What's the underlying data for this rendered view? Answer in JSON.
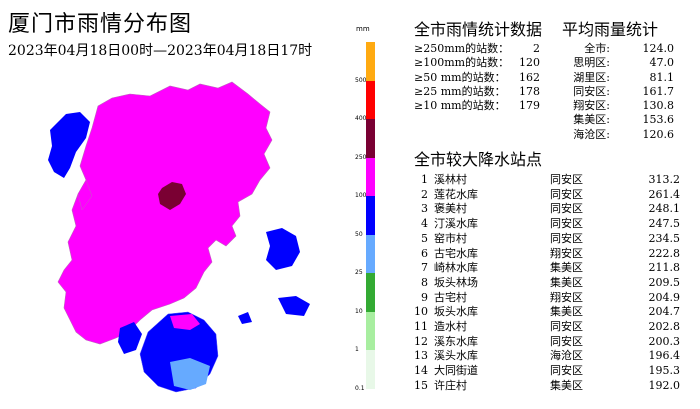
{
  "title": "厦门市雨情分布图",
  "subtitle": "2023年04月18日00时—2023年04月18日17时",
  "legend": {
    "unit": "mm",
    "ticks": [
      "500",
      "400",
      "250",
      "100",
      "50",
      "25",
      "10",
      "1",
      "0.1"
    ],
    "colors": [
      "#ffaa11",
      "#ff0000",
      "#7a0033",
      "#ff00ff",
      "#0000ff",
      "#66aaff",
      "#33aa33",
      "#a8eea0",
      "#e8f8e8"
    ]
  },
  "stats": {
    "title": "全市雨情统计数据",
    "rows": [
      {
        "label": "≥250mm的站数：",
        "value": "2"
      },
      {
        "label": "≥100mm的站数：",
        "value": "120"
      },
      {
        "label": "≥50 mm的站数：",
        "value": "162"
      },
      {
        "label": "≥25 mm的站数：",
        "value": "178"
      },
      {
        "label": "≥10 mm的站数：",
        "value": "179"
      }
    ]
  },
  "average": {
    "title": "平均雨量统计",
    "rows": [
      {
        "label": "全市:",
        "value": "124.0"
      },
      {
        "label": "思明区:",
        "value": "47.0"
      },
      {
        "label": "湖里区:",
        "value": "81.1"
      },
      {
        "label": "同安区:",
        "value": "161.7"
      },
      {
        "label": "翔安区:",
        "value": "130.8"
      },
      {
        "label": "集美区:",
        "value": "153.6"
      },
      {
        "label": "海沧区:",
        "value": "120.6"
      }
    ]
  },
  "heavy": {
    "title": "全市较大降水站点",
    "rows": [
      {
        "rank": "1",
        "name": "溪林村",
        "district": "同安区",
        "value": "313.2"
      },
      {
        "rank": "2",
        "name": "莲花水库",
        "district": "同安区",
        "value": "261.4"
      },
      {
        "rank": "3",
        "name": "褒美村",
        "district": "同安区",
        "value": "248.1"
      },
      {
        "rank": "4",
        "name": "汀溪水库",
        "district": "同安区",
        "value": "247.5"
      },
      {
        "rank": "5",
        "name": "窑市村",
        "district": "同安区",
        "value": "234.5"
      },
      {
        "rank": "6",
        "name": "古宅水库",
        "district": "翔安区",
        "value": "222.8"
      },
      {
        "rank": "7",
        "name": "崎林水库",
        "district": "集美区",
        "value": "211.8"
      },
      {
        "rank": "8",
        "name": "坂头林场",
        "district": "集美区",
        "value": "209.5"
      },
      {
        "rank": "9",
        "name": "古宅村",
        "district": "翔安区",
        "value": "204.9"
      },
      {
        "rank": "10",
        "name": "坂头水库",
        "district": "集美区",
        "value": "204.7"
      },
      {
        "rank": "11",
        "name": "造水村",
        "district": "同安区",
        "value": "202.8"
      },
      {
        "rank": "12",
        "name": "溪东水库",
        "district": "同安区",
        "value": "200.3"
      },
      {
        "rank": "13",
        "name": "溪头水库",
        "district": "海沧区",
        "value": "196.4"
      },
      {
        "rank": "14",
        "name": "大同街道",
        "district": "同安区",
        "value": "195.3"
      },
      {
        "rank": "15",
        "name": "许庄村",
        "district": "集美区",
        "value": "192.0"
      }
    ]
  }
}
